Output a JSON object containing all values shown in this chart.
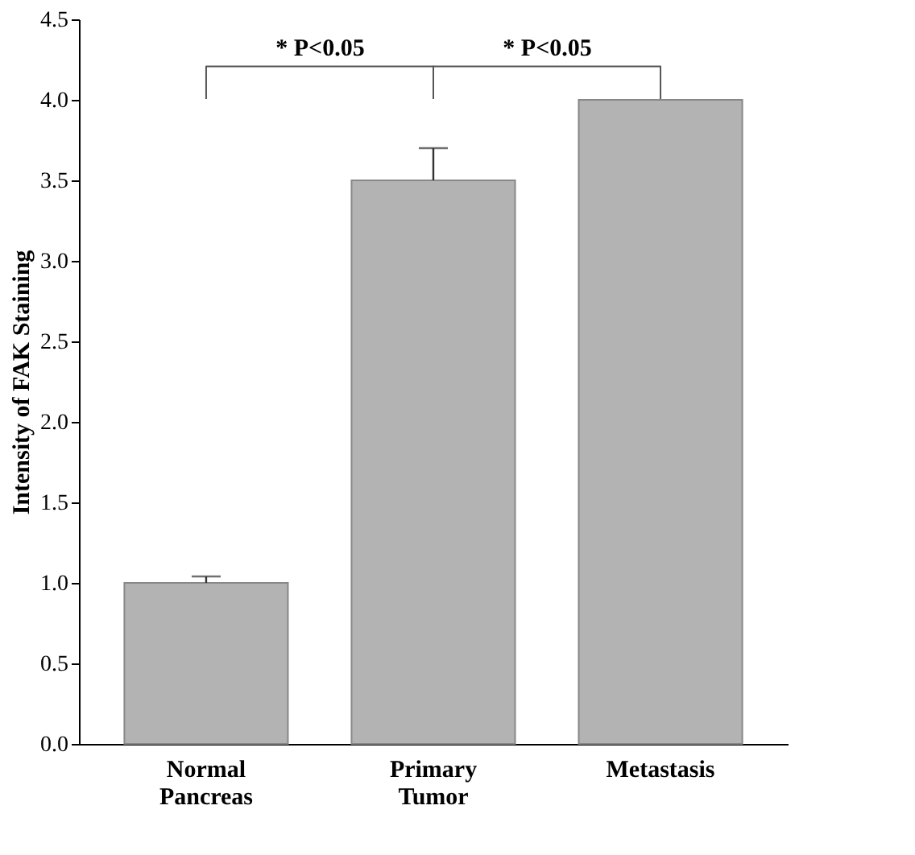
{
  "chart_data": {
    "type": "bar",
    "ylabel": "Intensity of FAK Staining",
    "categories": [
      "Normal Pancreas",
      "Primary Tumor",
      "Metastasis"
    ],
    "values": [
      1.0,
      3.5,
      4.0
    ],
    "color": "#b3b3b3",
    "errors": [
      [
        1.0,
        1.04
      ],
      [
        3.5,
        3.7
      ],
      null
    ],
    "ylim": [
      0,
      4.5
    ],
    "yticks": [
      {
        "value": 0,
        "label": "0.0"
      },
      0.5,
      {
        "value": 1,
        "label": "1.0"
      },
      1.5,
      {
        "value": 2,
        "label": "2.0"
      },
      2.5,
      {
        "value": 3,
        "label": "3.0"
      },
      3.5,
      {
        "value": 4,
        "label": "4.0"
      },
      4.5
    ],
    "annotations": [
      "* P<0.05",
      "* P<0.05"
    ],
    "grid": false
  }
}
